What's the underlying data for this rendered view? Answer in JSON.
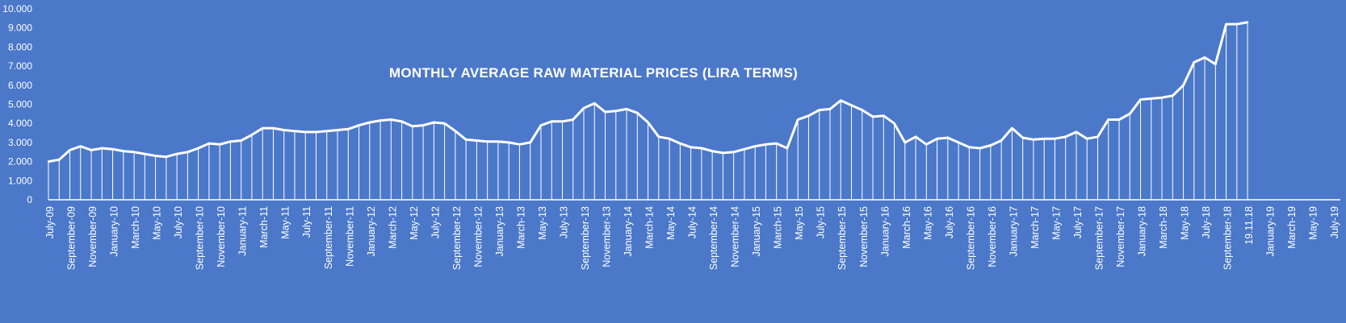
{
  "colors": {
    "background": "#4b78c9",
    "series": "#ffffff"
  },
  "chart_data": {
    "type": "area",
    "title": "MONTHLY AVERAGE RAW MATERIAL PRICES (LIRA TERMS)",
    "xlabel": "",
    "ylabel": "",
    "ylim": [
      0,
      10000
    ],
    "y_ticks": [
      "0",
      "1.000",
      "2.000",
      "3.000",
      "4.000",
      "5.000",
      "6.000",
      "7.000",
      "8.000",
      "9.000",
      "10.000"
    ],
    "grid": false,
    "legend": "none",
    "x_tick_labels": [
      "July-09",
      "September-09",
      "November-09",
      "January-10",
      "March-10",
      "May-10",
      "July-10",
      "September-10",
      "November-10",
      "January-11",
      "March-11",
      "May-11",
      "July-11",
      "September-11",
      "November-11",
      "January-12",
      "March-12",
      "May-12",
      "July-12",
      "September-12",
      "November-12",
      "January-13",
      "March-13",
      "May-13",
      "July-13",
      "September-13",
      "November-13",
      "January-14",
      "March-14",
      "May-14",
      "July-14",
      "September-14",
      "November-14",
      "January-15",
      "March-15",
      "May-15",
      "July-15",
      "September-15",
      "November-15",
      "January-16",
      "March-16",
      "May-16",
      "July-16",
      "September-16",
      "November-16",
      "January-17",
      "March-17",
      "May-17",
      "July-17",
      "September-17",
      "November-17",
      "January-18",
      "March-18",
      "May-18",
      "July-18",
      "September-18",
      "19.11.18",
      "January-19",
      "March-19",
      "May-19",
      "July-19"
    ],
    "values": [
      2000,
      2100,
      2600,
      2800,
      2600,
      2700,
      2650,
      2550,
      2500,
      2400,
      2300,
      2250,
      2400,
      2500,
      2700,
      2950,
      2900,
      3050,
      3100,
      3400,
      3750,
      3750,
      3650,
      3600,
      3550,
      3550,
      3600,
      3650,
      3700,
      3900,
      4050,
      4150,
      4200,
      4100,
      3850,
      3900,
      4050,
      4000,
      3600,
      3150,
      3100,
      3050,
      3050,
      3000,
      2900,
      3000,
      3900,
      4100,
      4100,
      4200,
      4800,
      5050,
      4600,
      4650,
      4750,
      4550,
      4050,
      3300,
      3200,
      2950,
      2750,
      2700,
      2550,
      2450,
      2500,
      2650,
      2800,
      2900,
      2950,
      2700,
      4200,
      4400,
      4700,
      4750,
      5200,
      4950,
      4700,
      4350,
      4400,
      4000,
      3000,
      3300,
      2900,
      3200,
      3250,
      3000,
      2750,
      2700,
      2850,
      3100,
      3750,
      3250,
      3150,
      3200,
      3200,
      3300,
      3550,
      3200,
      3300,
      4200,
      4200,
      4500,
      5250,
      5300,
      5350,
      5450,
      6000,
      7200,
      7450,
      7100,
      9200,
      9200,
      9300
    ]
  }
}
